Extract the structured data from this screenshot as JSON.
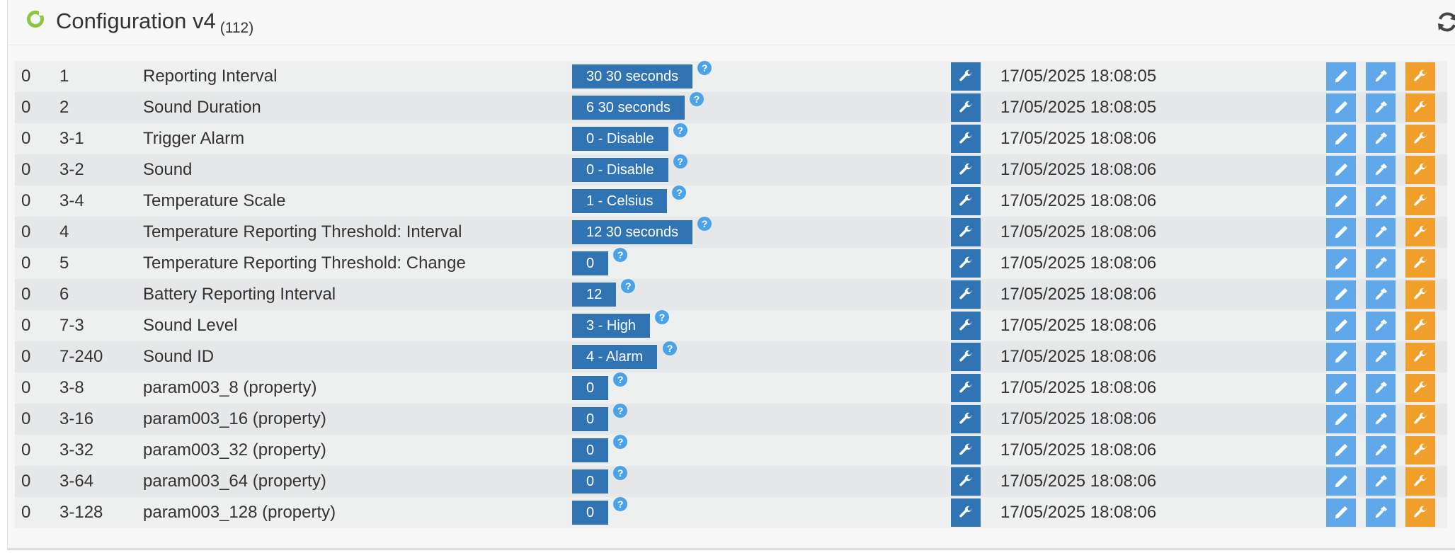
{
  "header": {
    "title": "Configuration v4",
    "count": "(112)",
    "status_icon": "status-ring-icon",
    "refresh_icon": "refresh-icon"
  },
  "colors": {
    "value_button": "#3074b4",
    "edit_button": "#61a8ea",
    "tool_button": "#f0a02a",
    "status_ring": "#8cc63f",
    "help_icon": "#4aa3e8"
  },
  "rows": [
    {
      "instance": "0",
      "param": "1",
      "label": "Reporting Interval",
      "value": "30 30 seconds",
      "date": "17/05/2025 18:08:05"
    },
    {
      "instance": "0",
      "param": "2",
      "label": "Sound Duration",
      "value": "6 30 seconds",
      "date": "17/05/2025 18:08:05"
    },
    {
      "instance": "0",
      "param": "3-1",
      "label": "Trigger Alarm",
      "value": "0 - Disable",
      "date": "17/05/2025 18:08:06"
    },
    {
      "instance": "0",
      "param": "3-2",
      "label": "Sound",
      "value": "0 - Disable",
      "date": "17/05/2025 18:08:06"
    },
    {
      "instance": "0",
      "param": "3-4",
      "label": "Temperature Scale",
      "value": "1 - Celsius",
      "date": "17/05/2025 18:08:06"
    },
    {
      "instance": "0",
      "param": "4",
      "label": "Temperature Reporting Threshold: Interval",
      "value": "12 30 seconds",
      "date": "17/05/2025 18:08:06"
    },
    {
      "instance": "0",
      "param": "5",
      "label": "Temperature Reporting Threshold: Change",
      "value": "0",
      "date": "17/05/2025 18:08:06"
    },
    {
      "instance": "0",
      "param": "6",
      "label": "Battery Reporting Interval",
      "value": "12",
      "date": "17/05/2025 18:08:06"
    },
    {
      "instance": "0",
      "param": "7-3",
      "label": "Sound Level",
      "value": "3 - High",
      "date": "17/05/2025 18:08:06"
    },
    {
      "instance": "0",
      "param": "7-240",
      "label": "Sound ID",
      "value": "4 - Alarm",
      "date": "17/05/2025 18:08:06"
    },
    {
      "instance": "0",
      "param": "3-8",
      "label": "param003_8 (property)",
      "value": "0",
      "date": "17/05/2025 18:08:06"
    },
    {
      "instance": "0",
      "param": "3-16",
      "label": "param003_16 (property)",
      "value": "0",
      "date": "17/05/2025 18:08:06"
    },
    {
      "instance": "0",
      "param": "3-32",
      "label": "param003_32 (property)",
      "value": "0",
      "date": "17/05/2025 18:08:06"
    },
    {
      "instance": "0",
      "param": "3-64",
      "label": "param003_64 (property)",
      "value": "0",
      "date": "17/05/2025 18:08:06"
    },
    {
      "instance": "0",
      "param": "3-128",
      "label": "param003_128 (property)",
      "value": "0",
      "date": "17/05/2025 18:08:06"
    }
  ],
  "help_glyph": "?",
  "row_icons": {
    "config": "wrench-icon",
    "edit": "pencil-icon",
    "pick": "eyedropper-icon",
    "tool": "wrench-icon"
  }
}
